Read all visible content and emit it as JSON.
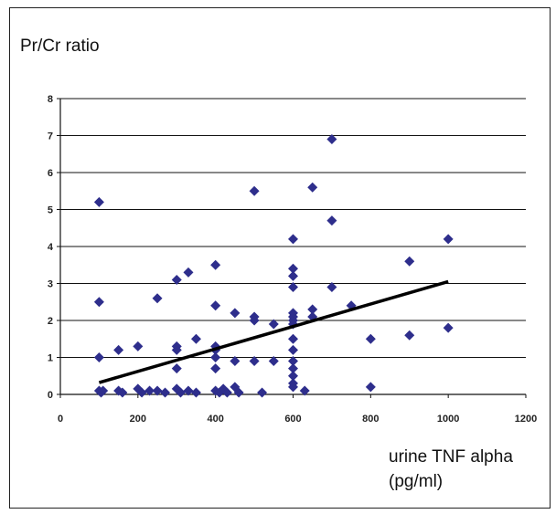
{
  "chart_data": {
    "type": "scatter",
    "title": "",
    "ylabel": "Pr/Cr ratio",
    "xlabel": "urine TNF alpha (pg/ml)",
    "xlim": [
      0,
      1200
    ],
    "ylim": [
      0,
      8
    ],
    "xticks": [
      0,
      200,
      400,
      600,
      800,
      1000,
      1200
    ],
    "yticks": [
      0,
      1,
      2,
      3,
      4,
      5,
      6,
      7,
      8
    ],
    "grid": "horizontal",
    "legend": "none",
    "marker_color": "#2e2e8c",
    "trendline_color": "#000000",
    "points": [
      {
        "x": 100,
        "y": 5.2
      },
      {
        "x": 100,
        "y": 2.5
      },
      {
        "x": 100,
        "y": 1.0
      },
      {
        "x": 100,
        "y": 0.1
      },
      {
        "x": 105,
        "y": 0.05
      },
      {
        "x": 110,
        "y": 0.1
      },
      {
        "x": 150,
        "y": 1.2
      },
      {
        "x": 150,
        "y": 0.1
      },
      {
        "x": 160,
        "y": 0.05
      },
      {
        "x": 200,
        "y": 1.3
      },
      {
        "x": 200,
        "y": 0.15
      },
      {
        "x": 210,
        "y": 0.05
      },
      {
        "x": 230,
        "y": 0.1
      },
      {
        "x": 250,
        "y": 2.6
      },
      {
        "x": 250,
        "y": 0.1
      },
      {
        "x": 270,
        "y": 0.05
      },
      {
        "x": 300,
        "y": 3.1
      },
      {
        "x": 300,
        "y": 1.3
      },
      {
        "x": 300,
        "y": 1.2
      },
      {
        "x": 300,
        "y": 0.7
      },
      {
        "x": 300,
        "y": 0.15
      },
      {
        "x": 310,
        "y": 0.05
      },
      {
        "x": 330,
        "y": 3.3
      },
      {
        "x": 330,
        "y": 0.1
      },
      {
        "x": 350,
        "y": 1.5
      },
      {
        "x": 350,
        "y": 0.05
      },
      {
        "x": 400,
        "y": 3.5
      },
      {
        "x": 400,
        "y": 2.4
      },
      {
        "x": 400,
        "y": 1.3
      },
      {
        "x": 400,
        "y": 1.2
      },
      {
        "x": 400,
        "y": 1.0
      },
      {
        "x": 400,
        "y": 0.7
      },
      {
        "x": 400,
        "y": 0.1
      },
      {
        "x": 410,
        "y": 0.05
      },
      {
        "x": 420,
        "y": 0.15
      },
      {
        "x": 430,
        "y": 0.05
      },
      {
        "x": 450,
        "y": 2.2
      },
      {
        "x": 450,
        "y": 0.9
      },
      {
        "x": 450,
        "y": 0.2
      },
      {
        "x": 460,
        "y": 0.05
      },
      {
        "x": 500,
        "y": 5.5
      },
      {
        "x": 500,
        "y": 2.1
      },
      {
        "x": 500,
        "y": 2.0
      },
      {
        "x": 500,
        "y": 0.9
      },
      {
        "x": 520,
        "y": 0.05
      },
      {
        "x": 550,
        "y": 1.9
      },
      {
        "x": 550,
        "y": 0.9
      },
      {
        "x": 600,
        "y": 4.2
      },
      {
        "x": 600,
        "y": 3.4
      },
      {
        "x": 600,
        "y": 3.2
      },
      {
        "x": 600,
        "y": 2.9
      },
      {
        "x": 600,
        "y": 2.2
      },
      {
        "x": 600,
        "y": 2.1
      },
      {
        "x": 600,
        "y": 2.0
      },
      {
        "x": 600,
        "y": 1.9
      },
      {
        "x": 600,
        "y": 1.5
      },
      {
        "x": 600,
        "y": 1.2
      },
      {
        "x": 600,
        "y": 0.9
      },
      {
        "x": 600,
        "y": 0.7
      },
      {
        "x": 600,
        "y": 0.5
      },
      {
        "x": 600,
        "y": 0.3
      },
      {
        "x": 600,
        "y": 0.2
      },
      {
        "x": 630,
        "y": 0.1
      },
      {
        "x": 650,
        "y": 5.6
      },
      {
        "x": 650,
        "y": 2.3
      },
      {
        "x": 650,
        "y": 2.1
      },
      {
        "x": 700,
        "y": 6.9
      },
      {
        "x": 700,
        "y": 4.7
      },
      {
        "x": 700,
        "y": 2.9
      },
      {
        "x": 750,
        "y": 2.4
      },
      {
        "x": 800,
        "y": 1.5
      },
      {
        "x": 800,
        "y": 0.2
      },
      {
        "x": 900,
        "y": 3.6
      },
      {
        "x": 900,
        "y": 1.6
      },
      {
        "x": 1000,
        "y": 4.2
      },
      {
        "x": 1000,
        "y": 1.8
      }
    ],
    "trendline": {
      "x": [
        100,
        1000
      ],
      "y": [
        0.32,
        3.05
      ]
    }
  }
}
